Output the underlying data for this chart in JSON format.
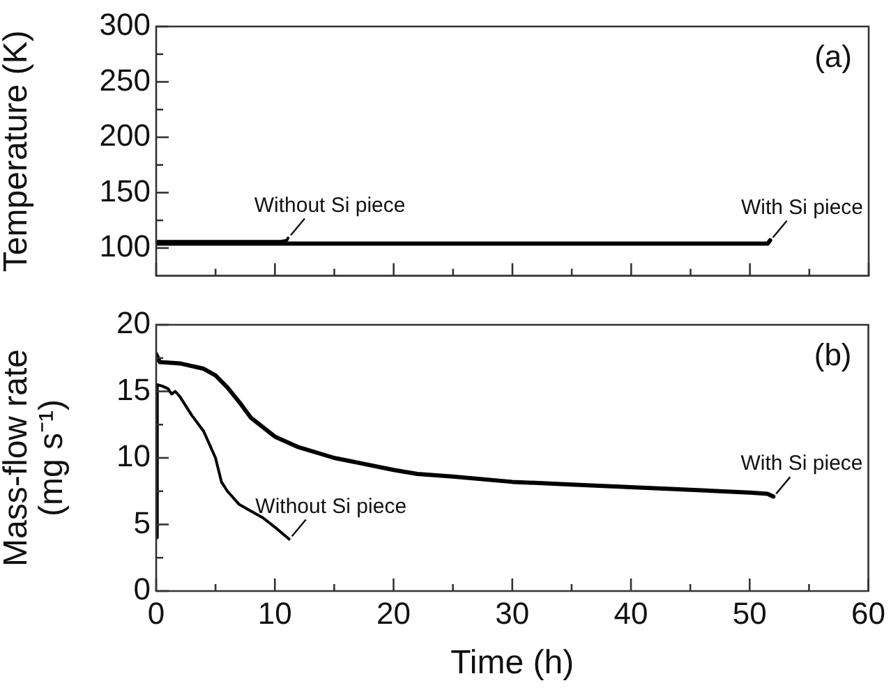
{
  "chart_data": [
    {
      "type": "line",
      "ylabel": "Temperature (K)",
      "xlim": [
        0,
        60
      ],
      "ylim": [
        75,
        300
      ],
      "xticks": [
        0,
        {
          "value": 5,
          "label": null
        },
        10,
        {
          "value": 15,
          "label": null
        },
        20,
        {
          "value": 25,
          "label": null
        },
        30,
        {
          "value": 35,
          "label": null
        },
        40,
        {
          "value": 45,
          "label": null
        },
        50,
        {
          "value": 55,
          "label": null
        },
        60
      ],
      "yticks": [
        100,
        {
          "value": 125,
          "label": null
        },
        150,
        {
          "value": 175,
          "label": null
        },
        200,
        {
          "value": 225,
          "label": null
        },
        250,
        {
          "value": 275,
          "label": null
        },
        300
      ],
      "tick_labels": "y",
      "grid": false,
      "legend": false,
      "marker": "none",
      "line_style": "solid",
      "series": [
        {
          "color": "#000000",
          "x": [
            0,
            2,
            5,
            8,
            10.5,
            11,
            11.1
          ],
          "values": [
            106,
            106,
            106,
            106,
            106,
            107,
            109
          ]
        },
        {
          "color": "#000000",
          "x": [
            0,
            10,
            20,
            30,
            40,
            50,
            51.5,
            51.7
          ],
          "values": [
            104,
            104,
            104,
            104,
            104,
            104,
            104,
            107
          ]
        }
      ],
      "annotations": [
        "(a)",
        {
          "text": "Without Si piece",
          "x": 11.1,
          "y": 109
        },
        {
          "text": "With Si piece",
          "x": 51.7,
          "y": 107
        }
      ]
    },
    {
      "type": "line",
      "xlabel": "Time (h)",
      "ylabel": "Mass-flow rate (mg s⁻¹)",
      "xlim": [
        0,
        60
      ],
      "ylim": [
        0,
        20
      ],
      "xticks": [
        0,
        {
          "value": 5,
          "label": null
        },
        10,
        {
          "value": 15,
          "label": null
        },
        20,
        {
          "value": 25,
          "label": null
        },
        30,
        {
          "value": 35,
          "label": null
        },
        40,
        {
          "value": 45,
          "label": null
        },
        50,
        {
          "value": 55,
          "label": null
        },
        60
      ],
      "yticks": [
        0,
        {
          "value": 2.5,
          "label": null
        },
        5,
        {
          "value": 7.5,
          "label": null
        },
        10,
        {
          "value": 12.5,
          "label": null
        },
        15,
        {
          "value": 17.5,
          "label": null
        },
        20
      ],
      "grid": false,
      "legend": false,
      "marker": "none",
      "line_style": "solid",
      "series": [
        {
          "color": "#000000",
          "x": [
            0,
            0.1,
            0.5,
            1,
            1.3,
            1.6,
            2,
            3,
            4,
            5,
            5.5,
            6,
            7,
            8,
            9,
            10,
            11.2
          ],
          "values": [
            4,
            15.5,
            15.4,
            15.2,
            14.8,
            15,
            14.6,
            13.2,
            12,
            10,
            8.2,
            7.5,
            6.5,
            6,
            5.5,
            4.8,
            3.9
          ]
        },
        {
          "color": "#000000",
          "x": [
            0,
            0.3,
            2,
            4,
            5,
            6,
            7,
            8,
            10,
            12,
            15,
            20,
            22,
            25,
            30,
            35,
            40,
            45,
            50,
            51.5,
            52
          ],
          "values": [
            17.8,
            17.2,
            17.1,
            16.7,
            16.2,
            15.3,
            14.2,
            13,
            11.6,
            10.8,
            10,
            9.1,
            8.8,
            8.6,
            8.2,
            8,
            7.8,
            7.6,
            7.4,
            7.3,
            7.1
          ]
        }
      ],
      "annotations": [
        "(b)",
        {
          "text": "Without Si piece",
          "x": 11.2,
          "y": 3.9
        },
        {
          "text": "With Si piece",
          "x": 52,
          "y": 7.1
        }
      ]
    }
  ]
}
